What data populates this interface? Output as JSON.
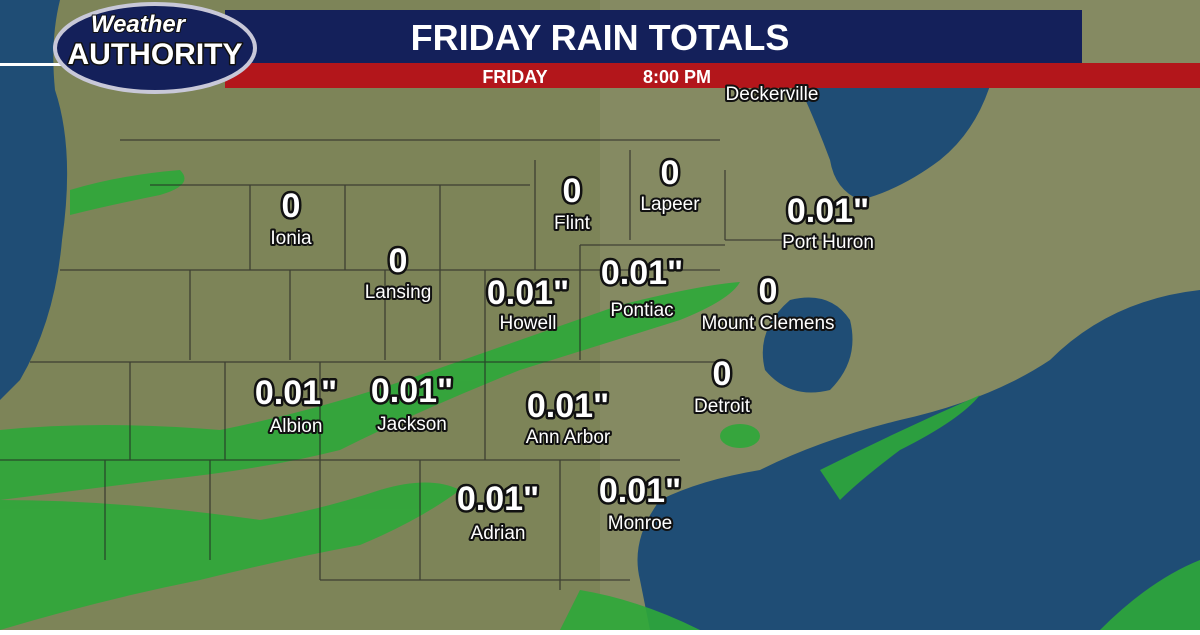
{
  "logo": {
    "line1": "Weather",
    "line2": "AUTHORITY"
  },
  "header": {
    "title": "FRIDAY RAIN TOTALS",
    "day": "FRIDAY",
    "time": "8:00 PM"
  },
  "background_label": "Deckerville",
  "cities": [
    {
      "name": "Ionia",
      "total": "0"
    },
    {
      "name": "Lansing",
      "total": "0"
    },
    {
      "name": "Flint",
      "total": "0"
    },
    {
      "name": "Lapeer",
      "total": "0"
    },
    {
      "name": "Port Huron",
      "total": "0.01\""
    },
    {
      "name": "Howell",
      "total": "0.01\""
    },
    {
      "name": "Pontiac",
      "total": "0.01\""
    },
    {
      "name": "Mount Clemens",
      "total": "0"
    },
    {
      "name": "Albion",
      "total": "0.01\""
    },
    {
      "name": "Jackson",
      "total": "0.01\""
    },
    {
      "name": "Ann Arbor",
      "total": "0.01\""
    },
    {
      "name": "Detroit",
      "total": "0"
    },
    {
      "name": "Adrian",
      "total": "0.01\""
    },
    {
      "name": "Monroe",
      "total": "0.01\""
    }
  ]
}
